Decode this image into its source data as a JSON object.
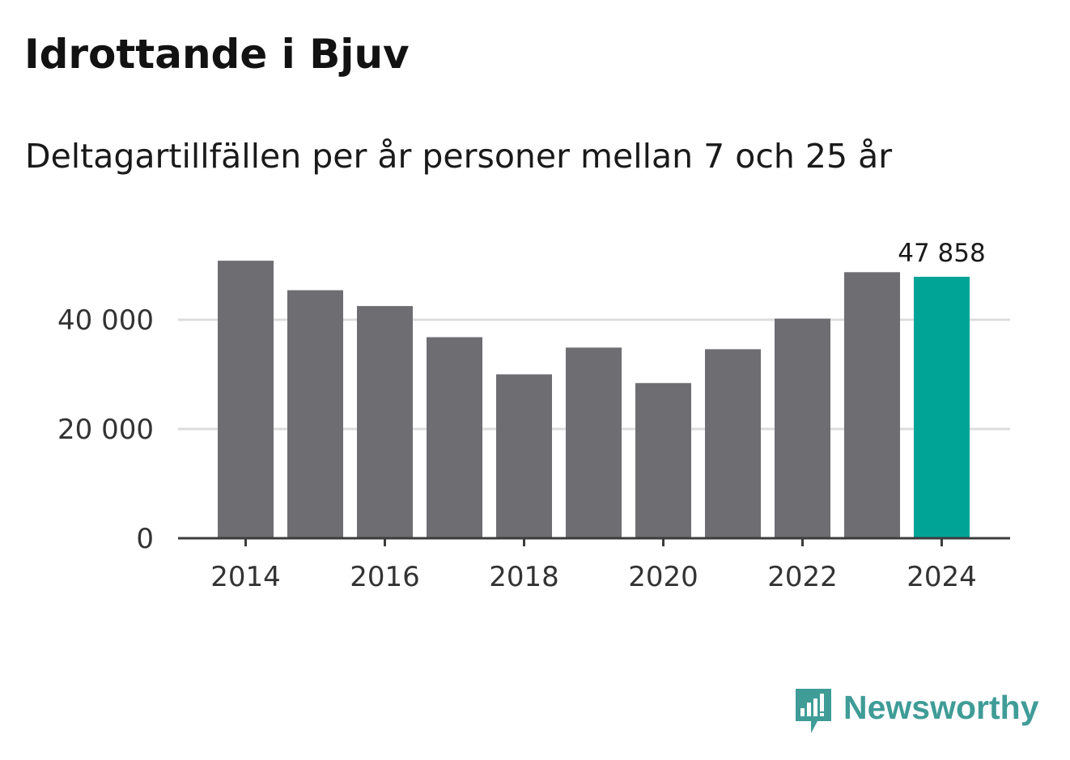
{
  "chart_data": {
    "type": "bar",
    "title": "Idrottande i Bjuv",
    "subtitle": "Deltagartillfällen per år personer mellan 7 och 25 år",
    "categories": [
      "2014",
      "2015",
      "2016",
      "2017",
      "2018",
      "2019",
      "2020",
      "2021",
      "2022",
      "2023",
      "2024"
    ],
    "values": [
      50800,
      45400,
      42500,
      36800,
      30000,
      34900,
      28400,
      34600,
      40200,
      48700,
      47858
    ],
    "x_tick_labels": [
      "2014",
      "2016",
      "2018",
      "2020",
      "2022",
      "2024"
    ],
    "y_tick_values": [
      0,
      20000,
      40000
    ],
    "y_tick_labels": [
      "0",
      "20 000",
      "40 000"
    ],
    "ylim": [
      0,
      60000
    ],
    "grid": true,
    "highlight_index": 10,
    "highlight_label": "47 858",
    "xlabel": "",
    "ylabel": ""
  },
  "colors": {
    "bar": "#6e6d72",
    "highlight": "#00a497",
    "grid": "#dcdcdc",
    "axis": "#3c3c3c",
    "brand": "#3f9c97"
  },
  "brand": {
    "name": "Newsworthy",
    "icon": "newsworthy-logo-icon"
  }
}
